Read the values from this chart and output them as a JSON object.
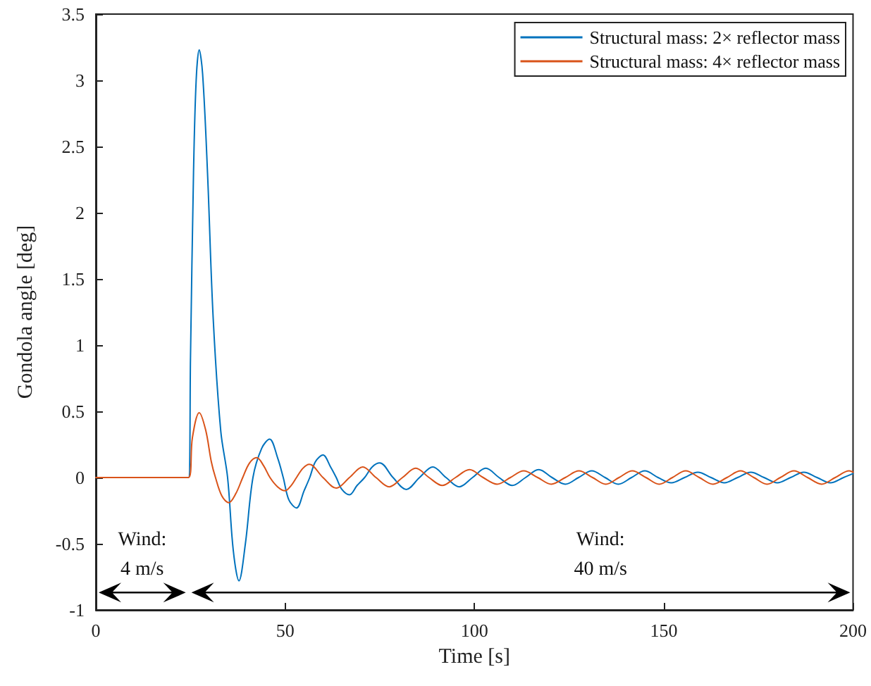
{
  "chart_data": {
    "type": "line",
    "xlabel": "Time [s]",
    "ylabel": "Gondola angle [deg]",
    "xlim": [
      0,
      200
    ],
    "xticks": [
      0,
      50,
      100,
      150,
      200
    ],
    "ylim": [
      -1,
      3.5
    ],
    "yticks": [
      -1,
      -0.5,
      0,
      0.5,
      1,
      1.5,
      2,
      2.5,
      3,
      3.5
    ],
    "grid": false,
    "legend": "top right",
    "marker": "none",
    "line_style": "solid",
    "annotations": [
      "Wind:\n4 m/s",
      "Wind:\n40 m/s"
    ],
    "series": [
      {
        "name": "Structural mass: 2× reflector mass",
        "color": "#0072bd",
        "x": [
          0,
          24.5,
          25,
          25.8,
          26.5,
          27.3,
          28.2,
          29.5,
          31,
          33,
          34.8,
          36.3,
          37.8,
          39.5,
          41.5,
          43.8,
          45.9,
          48,
          49.5,
          51,
          53,
          55,
          56.5,
          58,
          60,
          62,
          63.5,
          65,
          67,
          69,
          71,
          73,
          75,
          78.5,
          82,
          85.5,
          89,
          92.5,
          96,
          99.5,
          103,
          106.5,
          110,
          113.5,
          117,
          120.5,
          124,
          127.5,
          131,
          134.5,
          138,
          141.5,
          145,
          148.5,
          152,
          155.5,
          159,
          162.5,
          166,
          169.5,
          173,
          176.5,
          180,
          183.5,
          187,
          190.5,
          194,
          197.5,
          200
        ],
        "values": [
          0,
          0,
          0.9,
          2.3,
          3.0,
          3.23,
          3.05,
          2.3,
          1.2,
          0.35,
          0,
          -0.55,
          -0.78,
          -0.5,
          0,
          0.22,
          0.29,
          0.15,
          0,
          -0.17,
          -0.23,
          -0.1,
          0,
          0.12,
          0.17,
          0.08,
          0,
          -0.09,
          -0.13,
          -0.06,
          0,
          0.08,
          0.11,
          0,
          -0.09,
          0,
          0.08,
          0,
          -0.07,
          0,
          0.07,
          0,
          -0.06,
          0,
          0.06,
          0,
          -0.05,
          0,
          0.05,
          0,
          -0.05,
          0,
          0.05,
          0,
          -0.04,
          0,
          0.04,
          0,
          -0.04,
          0,
          0.04,
          0,
          -0.04,
          0,
          0.04,
          0,
          -0.04,
          0,
          0.03
        ]
      },
      {
        "name": "Structural mass: 4× reflector mass",
        "color": "#d95319",
        "x": [
          0,
          24.5,
          25.5,
          27.3,
          29,
          30.5,
          31.6,
          33.3,
          35.1,
          37,
          38.8,
          40.6,
          42.5,
          44.3,
          46,
          48,
          50,
          51.6,
          53,
          54.7,
          56.4,
          60,
          63.5,
          67,
          70.5,
          74,
          77.5,
          81,
          84.5,
          88,
          91.5,
          95,
          98.7,
          102.3,
          106,
          109.5,
          113,
          116.7,
          120.3,
          124,
          127.6,
          131.2,
          134.7,
          138.2,
          141.7,
          145.3,
          148.8,
          152.3,
          155.8,
          159.4,
          163,
          166.7,
          170.3,
          173.8,
          177.3,
          180.8,
          184.4,
          188,
          191.7,
          195.3,
          199,
          200
        ],
        "values": [
          0,
          0,
          0.3,
          0.49,
          0.36,
          0.12,
          0,
          -0.14,
          -0.19,
          -0.12,
          0,
          0.11,
          0.15,
          0.09,
          0,
          -0.07,
          -0.1,
          -0.06,
          0,
          0.07,
          0.1,
          0,
          -0.08,
          0,
          0.08,
          0,
          -0.07,
          0,
          0.07,
          0,
          -0.06,
          0,
          0.06,
          0,
          -0.05,
          0,
          0.05,
          0,
          -0.05,
          0,
          0.05,
          0,
          -0.05,
          0,
          0.05,
          0,
          -0.05,
          0,
          0.05,
          0,
          -0.05,
          0,
          0.05,
          0,
          -0.05,
          0,
          0.05,
          0,
          -0.05,
          0,
          0.05,
          0.04
        ]
      }
    ]
  }
}
